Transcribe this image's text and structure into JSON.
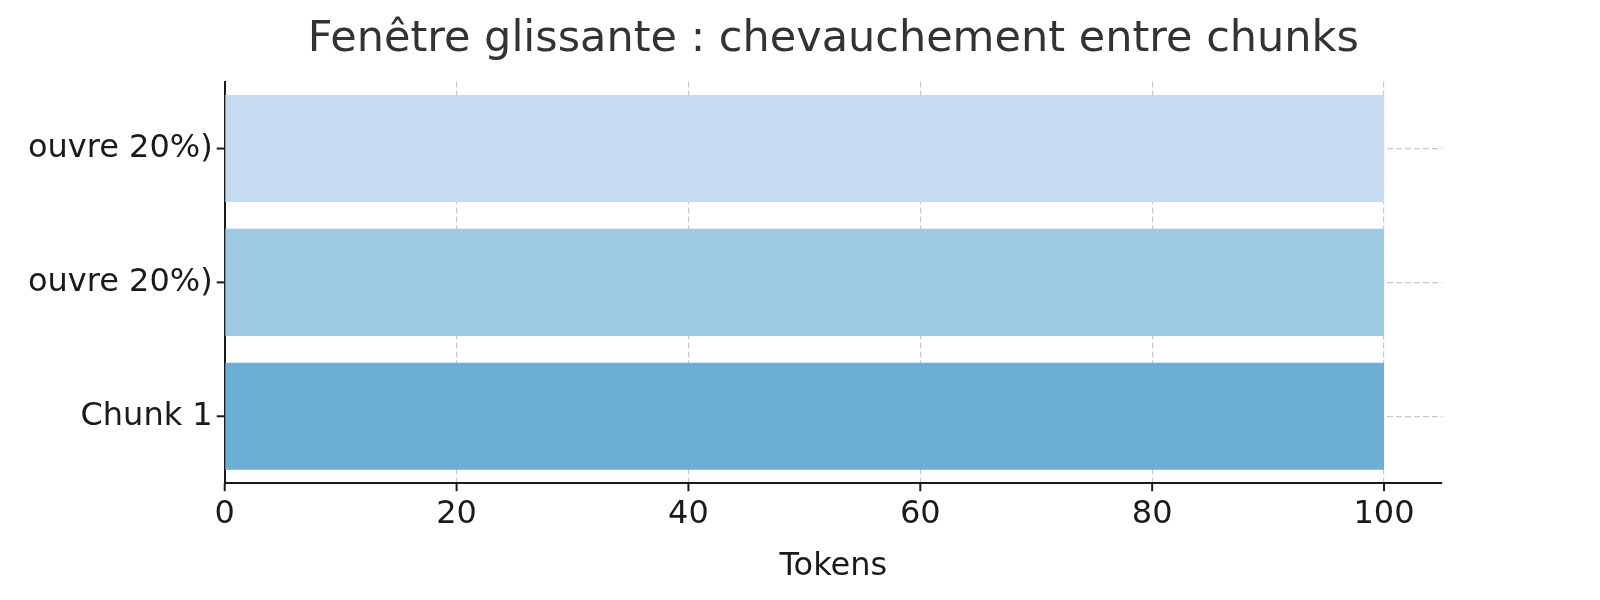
{
  "chart_data": {
    "type": "bar",
    "orientation": "horizontal",
    "title": "Fenêtre glissante : chevauchement entre chunks",
    "xlabel": "Tokens",
    "categories": [
      "ouvre 20%)",
      "ouvre 20%)",
      "Chunk 1"
    ],
    "values": [
      100,
      100,
      100
    ],
    "colors": [
      "#c6dbef",
      "#9ecae1",
      "#6baed6"
    ],
    "xlim": [
      0,
      105
    ],
    "xticks": [
      0,
      20,
      40,
      60,
      80,
      100
    ],
    "grid": true
  }
}
